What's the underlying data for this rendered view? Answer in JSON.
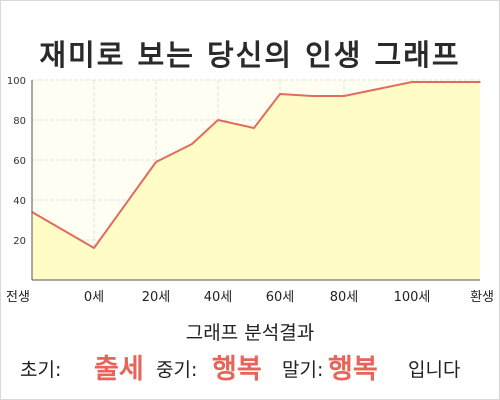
{
  "title": "재미로 보는 당신의 인생 그래프",
  "chart_data": {
    "type": "area",
    "title": "재미로 보는 당신의 인생 그래프",
    "x_ticks": [
      "전생",
      "0세",
      "20세",
      "40세",
      "60세",
      "80세",
      "100세",
      "환생"
    ],
    "y_ticks": [
      20,
      40,
      60,
      80,
      100
    ],
    "ylim": [
      0,
      100
    ],
    "grid": true,
    "series": [
      {
        "x": [
          "전생",
          "0세",
          "20세",
          "30세",
          "40세",
          "50세",
          "60세",
          "70세",
          "80세",
          "100세",
          "환생"
        ],
        "values": [
          34,
          16,
          59,
          68,
          80,
          76,
          93,
          92,
          92,
          99,
          99
        ]
      }
    ],
    "colors": {
      "line": "#e26b5f",
      "fill": "#fffdc5",
      "background": "#fffef2",
      "grid": "#e2e2d6"
    }
  },
  "result": {
    "heading": "그래프 분석결과",
    "early_label": "초기:",
    "early_value": "출세",
    "mid_label": "중기:",
    "mid_value": "행복",
    "late_label": "말기:",
    "late_value": "행복",
    "ending": "입니다"
  }
}
